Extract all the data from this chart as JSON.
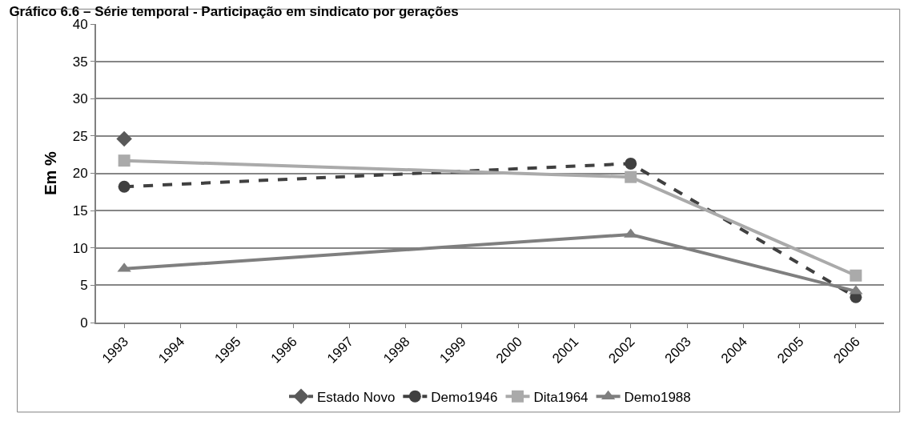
{
  "chart_data": {
    "type": "line",
    "title": "Gráfico 6.6 – Série temporal - Participação em sindicato por gerações",
    "ylabel": "Em %",
    "xlim": [
      1992.5,
      2006.5
    ],
    "xticks": [
      1993,
      1994,
      1995,
      1996,
      1997,
      1998,
      1999,
      2000,
      2001,
      2002,
      2003,
      2004,
      2005,
      2006
    ],
    "ylim": [
      0,
      40
    ],
    "yticks": [
      0,
      5,
      10,
      15,
      20,
      25,
      30,
      35,
      40
    ],
    "grid": "y",
    "legend": "bottom",
    "series": [
      {
        "name": "Estado Novo",
        "color": "#595959",
        "marker": "diamond",
        "line_style": "dashed",
        "x": [
          1993
        ],
        "values": [
          24.6
        ]
      },
      {
        "name": "Demo1946",
        "color": "#404040",
        "marker": "circle",
        "line_style": "dashed",
        "x": [
          1993,
          2002,
          2006
        ],
        "values": [
          18.2,
          21.3,
          3.4
        ]
      },
      {
        "name": "Dita1964",
        "color": "#aaaaaa",
        "marker": "square",
        "line_style": "solid",
        "x": [
          1993,
          2002,
          2006
        ],
        "values": [
          21.7,
          19.5,
          6.3
        ]
      },
      {
        "name": "Demo1988",
        "color": "#7f7f7f",
        "marker": "triangle",
        "line_style": "solid",
        "x": [
          1993,
          2002,
          2006
        ],
        "values": [
          7.2,
          11.8,
          4.2
        ]
      }
    ]
  }
}
